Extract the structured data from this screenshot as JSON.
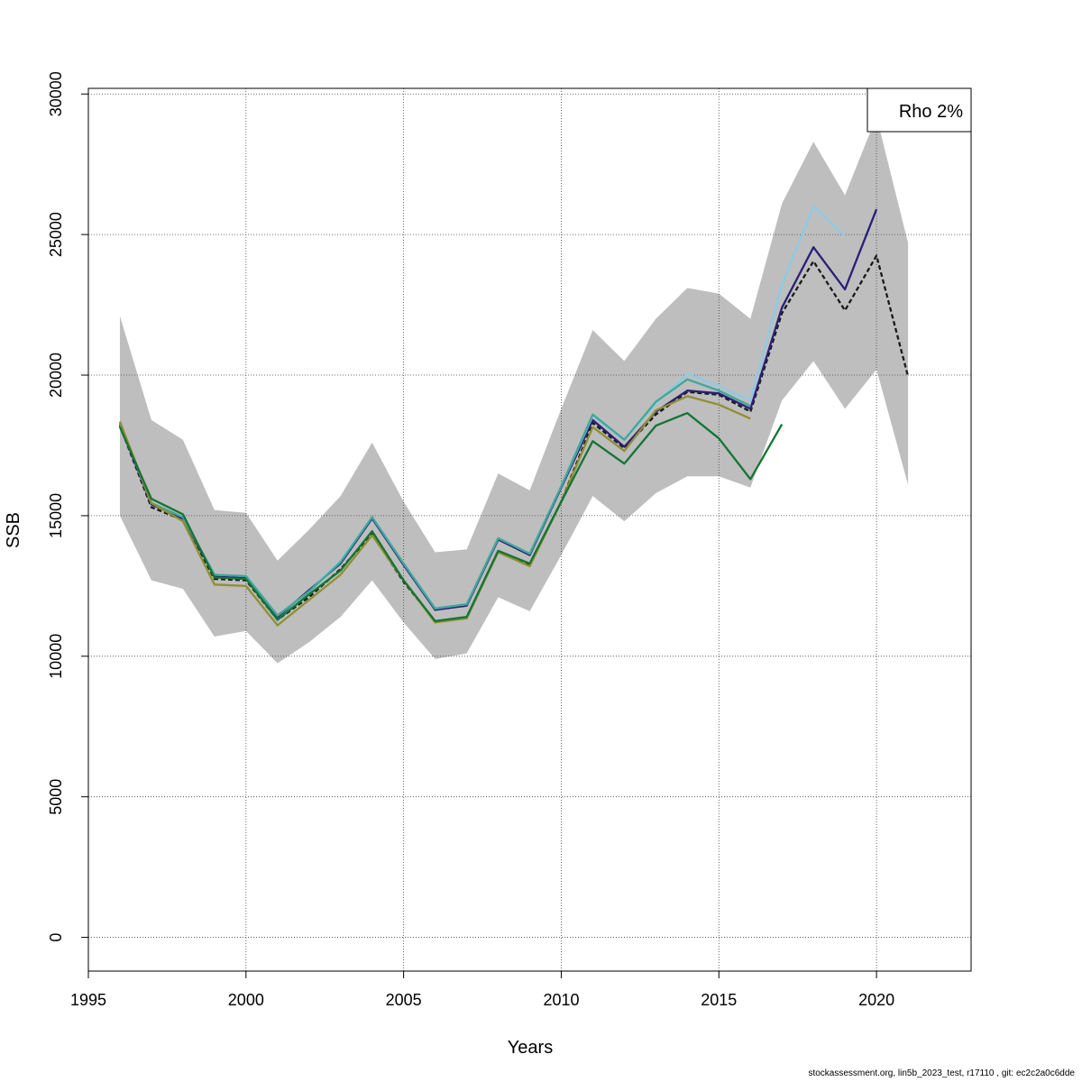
{
  "chart_data": {
    "type": "line",
    "title": "",
    "xlabel": "Years",
    "ylabel": "SSB",
    "xlim": [
      1995,
      2023
    ],
    "ylim": [
      -1200,
      30200
    ],
    "x_ticks": [
      1995,
      2000,
      2005,
      2010,
      2015,
      2020
    ],
    "y_ticks": [
      0,
      5000,
      10000,
      15000,
      20000,
      25000,
      30000
    ],
    "grid": true,
    "legend": {
      "placement": "top-right",
      "text": "Rho 2%"
    },
    "band": {
      "x": [
        1996,
        1997,
        1998,
        1999,
        2000,
        2001,
        2002,
        2003,
        2004,
        2005,
        2006,
        2007,
        2008,
        2009,
        2010,
        2011,
        2012,
        2013,
        2014,
        2015,
        2016,
        2017,
        2018,
        2019,
        2020,
        2021
      ],
      "upper": [
        22100,
        18400,
        17700,
        15200,
        15100,
        13400,
        14500,
        15700,
        17600,
        15500,
        13700,
        13800,
        16500,
        15900,
        18800,
        21600,
        20500,
        22000,
        23100,
        22900,
        22000,
        26100,
        28300,
        26400,
        29200,
        24700
      ],
      "lower": [
        15000,
        12700,
        12400,
        10700,
        10900,
        9750,
        10500,
        11400,
        12700,
        11200,
        9900,
        10100,
        12100,
        11600,
        13600,
        15700,
        14800,
        15800,
        16400,
        16400,
        16000,
        19100,
        20500,
        18800,
        20200,
        16100
      ]
    },
    "series": [
      {
        "color": "#1a1a1a",
        "dashed": true,
        "x": [
          1996,
          1997,
          1998,
          1999,
          2000,
          2001,
          2002,
          2003,
          2004,
          2005,
          2006,
          2007,
          2008,
          2009,
          2010,
          2011,
          2012,
          2013,
          2014,
          2015,
          2016,
          2017,
          2018,
          2019,
          2020,
          2021
        ],
        "values": [
          18200,
          15300,
          14850,
          12750,
          12700,
          11300,
          12100,
          13100,
          14350,
          12650,
          11250,
          11350,
          13750,
          13250,
          15500,
          18300,
          17400,
          18600,
          19400,
          19300,
          18700,
          22200,
          24050,
          22300,
          24250,
          19950
        ]
      },
      {
        "color": "#2a1f78",
        "x": [
          1996,
          1997,
          1998,
          1999,
          2000,
          2001,
          2002,
          2003,
          2004,
          2005,
          2006,
          2007,
          2008,
          2009,
          2010,
          2011,
          2012,
          2013,
          2014,
          2015,
          2016,
          2017,
          2018,
          2019,
          2020
        ],
        "values": [
          18250,
          15400,
          14900,
          12850,
          12800,
          11400,
          12350,
          13300,
          14900,
          13250,
          11650,
          11800,
          14150,
          13600,
          16000,
          18400,
          17450,
          18700,
          19450,
          19350,
          18800,
          22400,
          24550,
          23050,
          25900
        ]
      },
      {
        "color": "#8bcbe5",
        "x": [
          1996,
          1997,
          1998,
          1999,
          2000,
          2001,
          2002,
          2003,
          2004,
          2005,
          2006,
          2007,
          2008,
          2009,
          2010,
          2011,
          2012,
          2013,
          2014,
          2015,
          2016,
          2017,
          2018,
          2019
        ],
        "values": [
          18300,
          15450,
          14950,
          12900,
          12850,
          11450,
          12300,
          13400,
          14950,
          13300,
          11700,
          11850,
          14200,
          13650,
          16050,
          18550,
          17700,
          19000,
          20050,
          19600,
          19100,
          23200,
          26000,
          24950
        ]
      },
      {
        "color": "#3ea89a",
        "x": [
          1996,
          1997,
          1998,
          1999,
          2000,
          2001,
          2002,
          2003,
          2004,
          2005,
          2006,
          2007,
          2008,
          2009,
          2010,
          2011,
          2012,
          2013,
          2014,
          2015,
          2016
        ],
        "values": [
          18300,
          15450,
          14950,
          12900,
          12850,
          11450,
          12300,
          13350,
          14950,
          13300,
          11700,
          11850,
          14200,
          13650,
          16050,
          18600,
          17700,
          19050,
          19850,
          19450,
          18900
        ]
      },
      {
        "color": "#8f8f32",
        "x": [
          1996,
          1997,
          1998,
          1999,
          2000,
          2001,
          2002,
          2003,
          2004,
          2005,
          2006,
          2007,
          2008,
          2009,
          2010,
          2011,
          2012,
          2013,
          2014,
          2015,
          2016
        ],
        "values": [
          18350,
          15450,
          14800,
          12550,
          12500,
          11100,
          12000,
          12900,
          14300,
          12700,
          11200,
          11350,
          13700,
          13200,
          15500,
          18150,
          17300,
          18750,
          19250,
          18950,
          18450
        ]
      },
      {
        "color": "#127533",
        "x": [
          1996,
          1997,
          1998,
          1999,
          2000,
          2001,
          2002,
          2003,
          2004,
          2005,
          2006,
          2007,
          2008,
          2009,
          2010,
          2011,
          2012,
          2013,
          2014,
          2015,
          2016,
          2017
        ],
        "values": [
          18150,
          15600,
          15050,
          12800,
          12750,
          11300,
          12200,
          13050,
          14450,
          12700,
          11250,
          11400,
          13750,
          13300,
          15500,
          17650,
          16850,
          18200,
          18650,
          17750,
          16300,
          18250
        ]
      }
    ]
  },
  "footer": "stockassessment.org, lin5b_2023_test, r17110 , git: ec2c2a0c6dde"
}
